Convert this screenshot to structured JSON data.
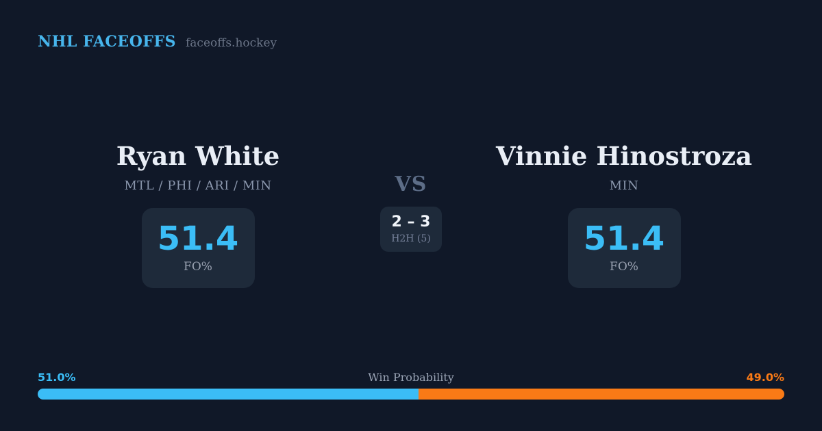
{
  "header": {
    "brand": "NHL FACEOFFS",
    "site": "faceoffs.hockey"
  },
  "players": {
    "left": {
      "name": "Ryan White",
      "teams": "MTL / PHI / ARI / MIN",
      "fo_pct": "51.4",
      "fo_label": "FO%"
    },
    "right": {
      "name": "Vinnie Hinostroza",
      "teams": "MIN",
      "fo_pct": "51.4",
      "fo_label": "FO%"
    }
  },
  "center": {
    "vs_label": "VS",
    "h2h_score": "2 – 3",
    "h2h_label": "H2H (5)"
  },
  "win_probability": {
    "label": "Win Probability",
    "left_pct_text": "51.0%",
    "right_pct_text": "49.0%",
    "left_value": 51.0,
    "right_value": 49.0,
    "left_color": "#3bbdf6",
    "right_color": "#f97a16"
  },
  "colors": {
    "background": "#101828",
    "card_box": "#1e2a3a",
    "accent_blue": "#3bbdf6",
    "accent_orange": "#f97a16"
  }
}
